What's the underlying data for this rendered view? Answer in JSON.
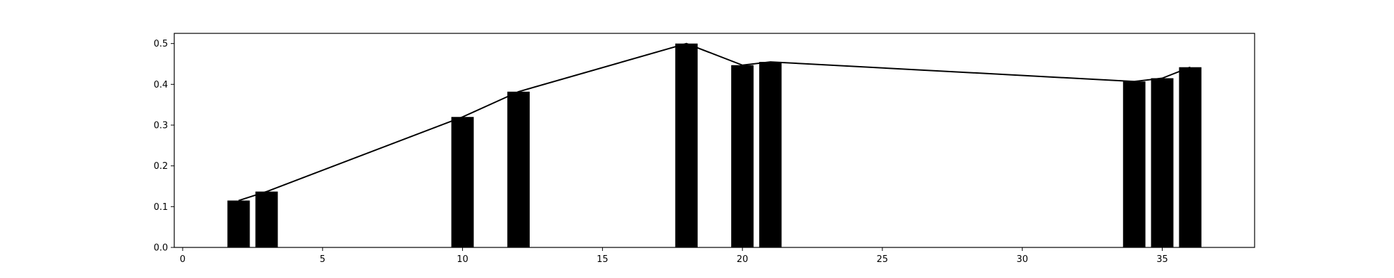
{
  "chart_data": {
    "type": "bar",
    "title": "",
    "xlabel": "",
    "ylabel": "",
    "xlim": [
      -0.3,
      38.3
    ],
    "ylim": [
      0,
      0.525
    ],
    "grid": false,
    "legend": "none",
    "bar_width": 0.8,
    "bar_color": "#000000",
    "line_color": "#000000",
    "x": [
      2,
      3,
      10,
      12,
      18,
      20,
      21,
      34,
      35,
      36
    ],
    "values": [
      0.115,
      0.137,
      0.32,
      0.382,
      0.5,
      0.447,
      0.455,
      0.407,
      0.415,
      0.442
    ],
    "xticks": [
      0,
      5,
      10,
      15,
      20,
      25,
      30,
      35
    ],
    "xtick_labels": [
      "0",
      "5",
      "10",
      "15",
      "20",
      "25",
      "30",
      "35"
    ],
    "yticks": [
      0.0,
      0.1,
      0.2,
      0.3,
      0.4,
      0.5
    ],
    "ytick_labels": [
      "0.0",
      "0.1",
      "0.2",
      "0.3",
      "0.4",
      "0.5"
    ]
  }
}
